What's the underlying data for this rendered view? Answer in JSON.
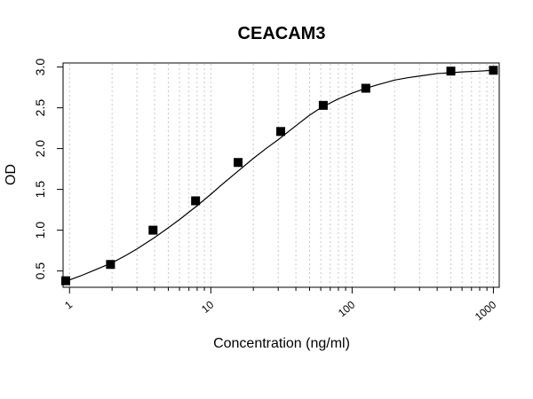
{
  "chart_data": {
    "type": "scatter",
    "title": "CEACAM3",
    "xlabel": "Concentration (ng/ml)",
    "ylabel": "OD",
    "x_scale": "log",
    "xlim": [
      0.9,
      1100
    ],
    "ylim": [
      0.3,
      3.05
    ],
    "x_ticks": [
      1,
      10,
      100,
      1000
    ],
    "x_tick_labels": [
      "1",
      "10",
      "100",
      "1000"
    ],
    "y_ticks": [
      0.5,
      1.0,
      1.5,
      2.0,
      2.5,
      3.0
    ],
    "y_tick_labels": [
      "0.5",
      "1.0",
      "1.5",
      "2.0",
      "2.5",
      "3.0"
    ],
    "grid": "vertical dotted gridlines at log decades",
    "series": [
      {
        "marker": "square",
        "color": "#000000",
        "x": [
          0.94,
          1.95,
          3.9,
          7.8,
          15.6,
          31.25,
          62.5,
          125,
          500,
          1000
        ],
        "y": [
          0.38,
          0.58,
          1.0,
          1.36,
          1.83,
          2.21,
          2.53,
          2.74,
          2.95,
          2.96
        ]
      }
    ],
    "fit_curve": {
      "color": "#000000",
      "x": [
        0.9,
        1,
        1.2,
        1.5,
        2,
        2.5,
        3,
        4,
        5,
        6,
        8,
        10,
        12,
        15,
        20,
        25,
        30,
        40,
        50,
        60,
        80,
        100,
        125,
        150,
        200,
        250,
        300,
        400,
        500,
        600,
        800,
        1000
      ],
      "y": [
        0.36,
        0.39,
        0.44,
        0.51,
        0.6,
        0.69,
        0.77,
        0.91,
        1.03,
        1.13,
        1.3,
        1.44,
        1.56,
        1.7,
        1.88,
        2.01,
        2.11,
        2.28,
        2.41,
        2.5,
        2.61,
        2.68,
        2.74,
        2.78,
        2.84,
        2.87,
        2.89,
        2.92,
        2.93,
        2.94,
        2.95,
        2.96
      ]
    }
  }
}
